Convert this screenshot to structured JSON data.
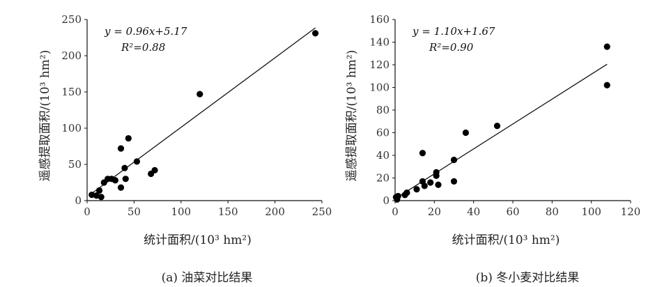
{
  "chart_data": [
    {
      "type": "scatter",
      "caption": "(a) 油菜对比结果",
      "xlabel": "统计面积/(10³ hm²)",
      "ylabel": "遥感提取面积/(10³ hm²)",
      "xlim": [
        0,
        250
      ],
      "ylim": [
        0,
        250
      ],
      "xticks": [
        0,
        50,
        100,
        150,
        200,
        250
      ],
      "yticks": [
        0,
        50,
        100,
        150,
        200,
        250
      ],
      "grid": false,
      "equation": "y = 0.96x+5.17",
      "r2": "R²=0.88",
      "fit": {
        "slope": 0.96,
        "intercept": 5.17,
        "x_range": [
          5,
          243
        ]
      },
      "points": [
        [
          5,
          8
        ],
        [
          10,
          7
        ],
        [
          13,
          14
        ],
        [
          15,
          5
        ],
        [
          18,
          25
        ],
        [
          22,
          30
        ],
        [
          26,
          30
        ],
        [
          30,
          28
        ],
        [
          36,
          18
        ],
        [
          36,
          72
        ],
        [
          40,
          45
        ],
        [
          41,
          30
        ],
        [
          44,
          86
        ],
        [
          53,
          54
        ],
        [
          68,
          37
        ],
        [
          72,
          42
        ],
        [
          120,
          147
        ],
        [
          243,
          231
        ]
      ]
    },
    {
      "type": "scatter",
      "caption": "(b) 冬小麦对比结果",
      "xlabel": "统计面积/(10³ hm²)",
      "ylabel": "遥感提取面积/(10³ hm²)",
      "xlim": [
        0,
        120
      ],
      "ylim": [
        0,
        160
      ],
      "xticks": [
        0,
        20,
        40,
        60,
        80,
        100,
        120
      ],
      "yticks": [
        0,
        20,
        40,
        60,
        80,
        100,
        120,
        140,
        160
      ],
      "grid": false,
      "equation": "y = 1.10x+1.67",
      "r2": "R²=0.90",
      "fit": {
        "slope": 1.1,
        "intercept": 1.67,
        "x_range": [
          0.5,
          108
        ]
      },
      "points": [
        [
          0.5,
          3
        ],
        [
          1,
          1
        ],
        [
          1.5,
          4
        ],
        [
          5,
          5
        ],
        [
          6,
          7
        ],
        [
          11,
          10
        ],
        [
          14,
          17
        ],
        [
          14,
          42
        ],
        [
          15,
          13
        ],
        [
          18,
          16
        ],
        [
          21,
          22
        ],
        [
          21,
          25
        ],
        [
          22,
          14
        ],
        [
          30,
          36
        ],
        [
          30,
          17
        ],
        [
          36,
          60
        ],
        [
          52,
          66
        ],
        [
          108,
          136
        ],
        [
          108,
          102
        ]
      ]
    }
  ],
  "colors": {
    "ink": "#111111",
    "marker": "#000000"
  }
}
